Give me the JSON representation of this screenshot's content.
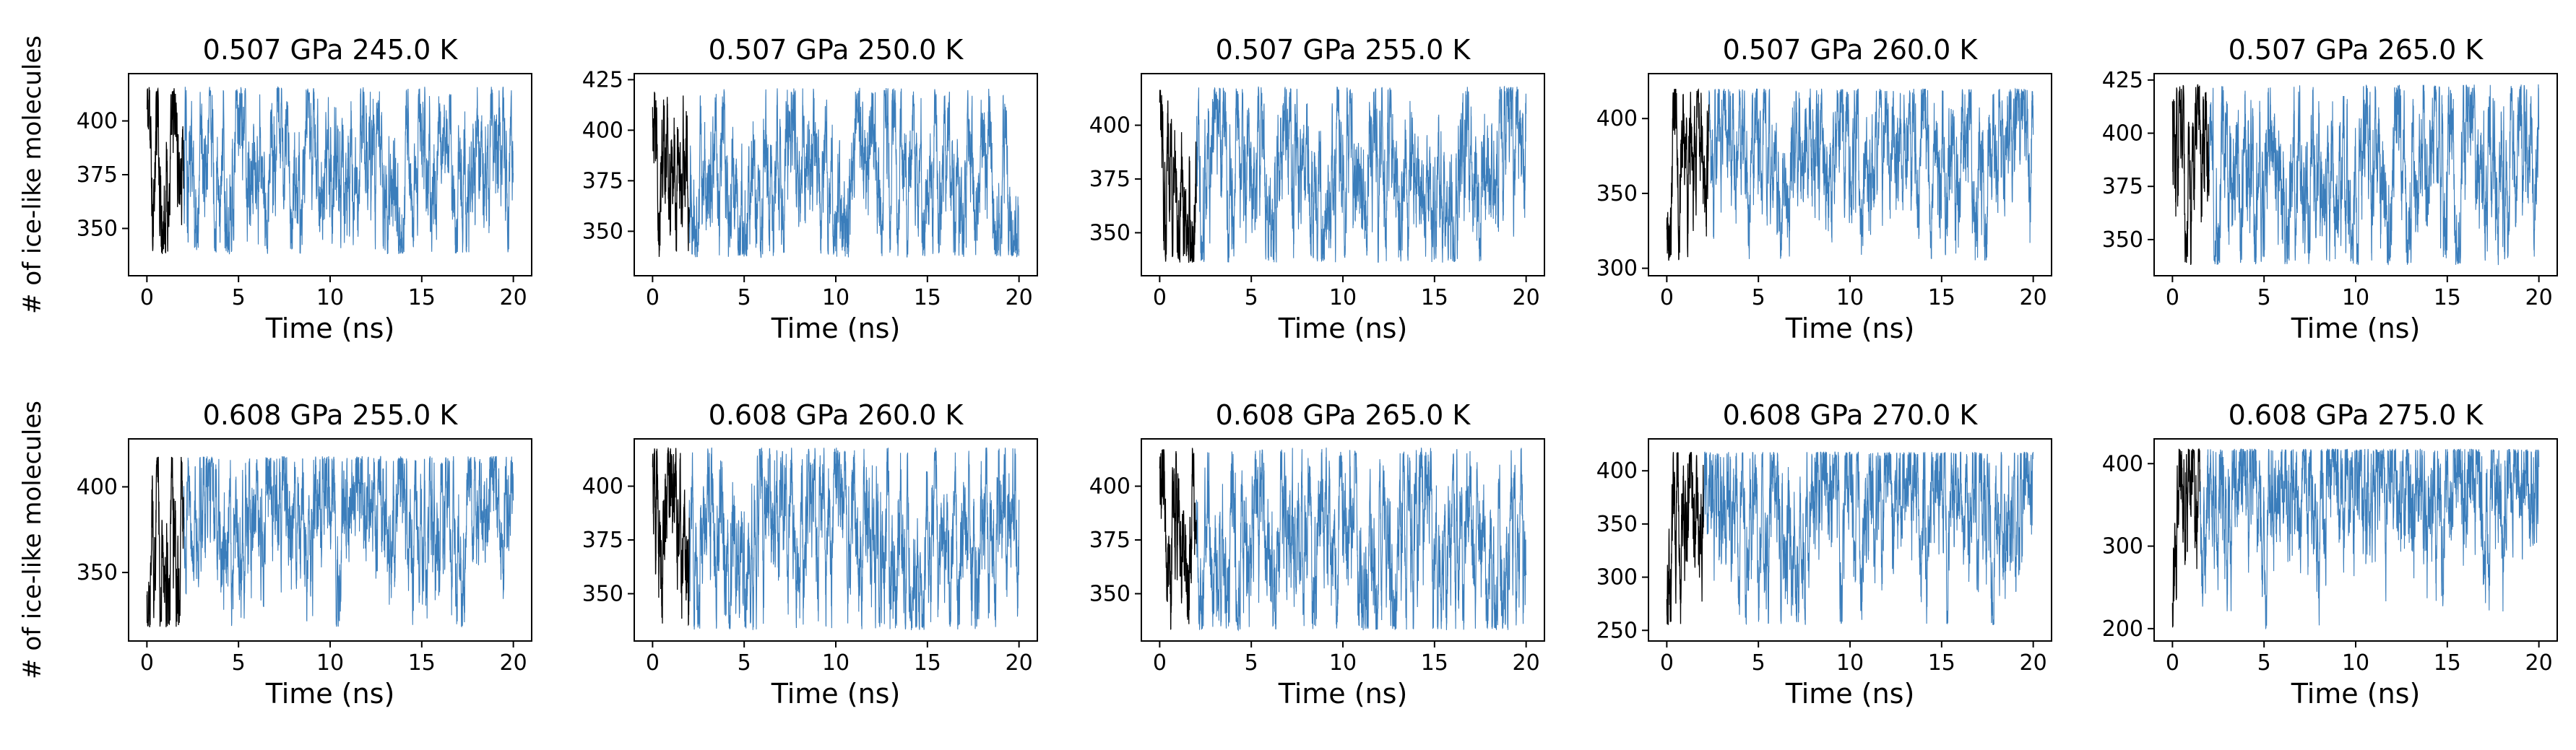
{
  "figure": {
    "ylabel": "# of ice-like molecules",
    "xlabel": "Time (ns)",
    "equil_color": "#000000",
    "prod_color": "#3a7dbb"
  },
  "chart_data": [
    {
      "type": "line",
      "pressure": "0.507 GPa",
      "temperature": "245.0 K",
      "xlabel": "Time (ns)",
      "xlim": [
        -1,
        21
      ],
      "ylim": [
        328,
        422
      ],
      "xticks": [
        0,
        5,
        10,
        15,
        20
      ],
      "yticks": [
        350,
        375,
        400
      ],
      "ymin_sim": 338,
      "ymax_sim": 416,
      "start_value": 390,
      "mean": 380,
      "equil_end": 2.0,
      "series": [
        {
          "name": "equilibration",
          "x_range": [
            0,
            2.0
          ]
        },
        {
          "name": "production",
          "x_range": [
            2.0,
            20
          ]
        }
      ]
    },
    {
      "type": "line",
      "pressure": "0.507 GPa",
      "temperature": "250.0 K",
      "xlabel": "Time (ns)",
      "xlim": [
        -1,
        21
      ],
      "ylim": [
        328,
        428
      ],
      "xticks": [
        0,
        5,
        10,
        15,
        20
      ],
      "yticks": [
        350,
        375,
        400,
        425
      ],
      "ymin_sim": 337,
      "ymax_sim": 421,
      "start_value": 395,
      "mean": 378,
      "equil_end": 2.0,
      "series": [
        {
          "name": "equilibration",
          "x_range": [
            0,
            2.0
          ]
        },
        {
          "name": "production",
          "x_range": [
            2.0,
            20
          ]
        }
      ]
    },
    {
      "type": "line",
      "pressure": "0.507 GPa",
      "temperature": "255.0 K",
      "xlabel": "Time (ns)",
      "xlim": [
        -1,
        21
      ],
      "ylim": [
        330,
        424
      ],
      "xticks": [
        0,
        5,
        10,
        15,
        20
      ],
      "yticks": [
        350,
        375,
        400
      ],
      "ymin_sim": 336,
      "ymax_sim": 418,
      "start_value": 395,
      "mean": 380,
      "equil_end": 2.0,
      "series": [
        {
          "name": "equilibration",
          "x_range": [
            0,
            2.0
          ]
        },
        {
          "name": "production",
          "x_range": [
            2.0,
            20
          ]
        }
      ]
    },
    {
      "type": "line",
      "pressure": "0.507 GPa",
      "temperature": "260.0 K",
      "xlabel": "Time (ns)",
      "xlim": [
        -1,
        21
      ],
      "ylim": [
        295,
        430
      ],
      "xticks": [
        0,
        5,
        10,
        15,
        20
      ],
      "yticks": [
        300,
        350,
        400
      ],
      "ymin_sim": 305,
      "ymax_sim": 420,
      "start_value": 305,
      "mean": 385,
      "equil_end": 2.3,
      "series": [
        {
          "name": "equilibration",
          "x_range": [
            0,
            2.3
          ]
        },
        {
          "name": "production",
          "x_range": [
            2.3,
            20
          ]
        }
      ]
    },
    {
      "type": "line",
      "pressure": "0.507 GPa",
      "temperature": "265.0 K",
      "xlabel": "Time (ns)",
      "xlim": [
        -1,
        21
      ],
      "ylim": [
        333,
        428
      ],
      "xticks": [
        0,
        5,
        10,
        15,
        20
      ],
      "yticks": [
        350,
        375,
        400,
        425
      ],
      "ymin_sim": 338,
      "ymax_sim": 423,
      "start_value": 400,
      "mean": 380,
      "equil_end": 2.0,
      "series": [
        {
          "name": "equilibration",
          "x_range": [
            0,
            2.0
          ]
        },
        {
          "name": "production",
          "x_range": [
            2.0,
            20
          ]
        }
      ]
    },
    {
      "type": "line",
      "pressure": "0.608 GPa",
      "temperature": "255.0 K",
      "xlabel": "Time (ns)",
      "xlim": [
        -1,
        21
      ],
      "ylim": [
        310,
        428
      ],
      "xticks": [
        0,
        5,
        10,
        15,
        20
      ],
      "yticks": [
        350,
        400
      ],
      "ymin_sim": 318,
      "ymax_sim": 418,
      "start_value": 320,
      "mean": 382,
      "equil_end": 2.0,
      "series": [
        {
          "name": "equilibration",
          "x_range": [
            0,
            2.0
          ]
        },
        {
          "name": "production",
          "x_range": [
            2.0,
            20
          ]
        }
      ]
    },
    {
      "type": "line",
      "pressure": "0.608 GPa",
      "temperature": "260.0 K",
      "xlabel": "Time (ns)",
      "xlim": [
        -1,
        21
      ],
      "ylim": [
        328,
        422
      ],
      "xticks": [
        0,
        5,
        10,
        15,
        20
      ],
      "yticks": [
        350,
        375,
        400
      ],
      "ymin_sim": 333,
      "ymax_sim": 418,
      "start_value": 395,
      "mean": 376,
      "equil_end": 2.0,
      "series": [
        {
          "name": "equilibration",
          "x_range": [
            0,
            2.0
          ]
        },
        {
          "name": "production",
          "x_range": [
            2.0,
            20
          ]
        }
      ]
    },
    {
      "type": "line",
      "pressure": "0.608 GPa",
      "temperature": "265.0 K",
      "xlabel": "Time (ns)",
      "xlim": [
        -1,
        21
      ],
      "ylim": [
        328,
        422
      ],
      "xticks": [
        0,
        5,
        10,
        15,
        20
      ],
      "yticks": [
        350,
        375,
        400
      ],
      "ymin_sim": 333,
      "ymax_sim": 418,
      "start_value": 395,
      "mean": 374,
      "equil_end": 2.0,
      "series": [
        {
          "name": "equilibration",
          "x_range": [
            0,
            2.0
          ]
        },
        {
          "name": "production",
          "x_range": [
            2.0,
            20
          ]
        }
      ]
    },
    {
      "type": "line",
      "pressure": "0.608 GPa",
      "temperature": "270.0 K",
      "xlabel": "Time (ns)",
      "xlim": [
        -1,
        21
      ],
      "ylim": [
        240,
        430
      ],
      "xticks": [
        0,
        5,
        10,
        15,
        20
      ],
      "yticks": [
        250,
        300,
        350,
        400
      ],
      "ymin_sim": 255,
      "ymax_sim": 418,
      "start_value": 255,
      "mean": 375,
      "equil_end": 2.0,
      "series": [
        {
          "name": "equilibration",
          "x_range": [
            0,
            2.0
          ]
        },
        {
          "name": "production",
          "x_range": [
            2.0,
            20
          ]
        }
      ]
    },
    {
      "type": "line",
      "pressure": "0.608 GPa",
      "temperature": "275.0 K",
      "xlabel": "Time (ns)",
      "xlim": [
        -1,
        21
      ],
      "ylim": [
        185,
        430
      ],
      "xticks": [
        0,
        5,
        10,
        15,
        20
      ],
      "yticks": [
        200,
        300,
        400
      ],
      "ymin_sim": 200,
      "ymax_sim": 418,
      "start_value": 200,
      "mean": 380,
      "equil_end": 1.5,
      "series": [
        {
          "name": "equilibration",
          "x_range": [
            0,
            1.5
          ]
        },
        {
          "name": "production",
          "x_range": [
            1.5,
            20
          ]
        }
      ]
    }
  ]
}
